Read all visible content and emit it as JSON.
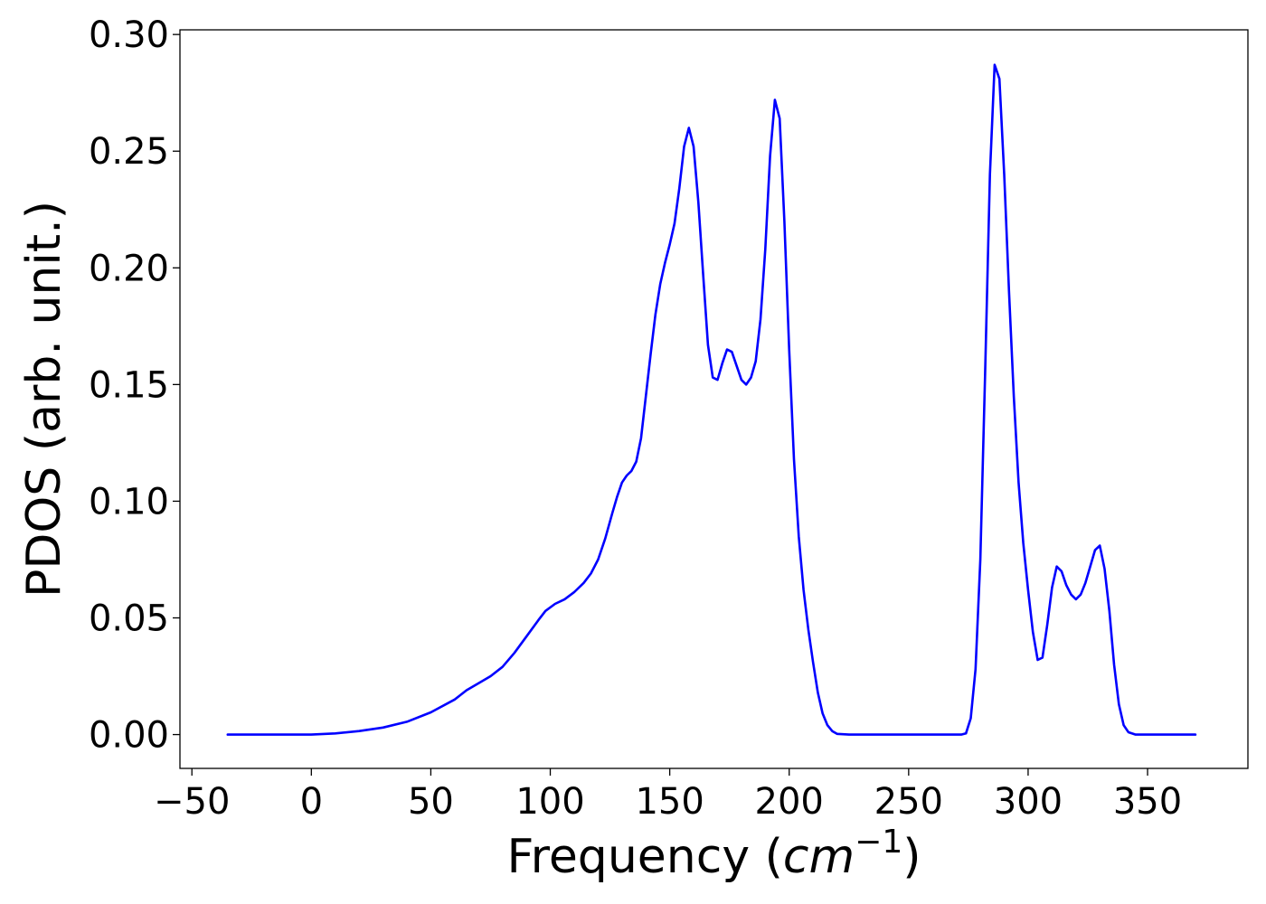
{
  "chart_data": {
    "type": "line",
    "xlabel": "Frequency (cm−1)",
    "xlabel_parts": {
      "prefix": "Frequency (",
      "unit_base": "cm",
      "unit_exponent": "−1",
      "suffix": ")"
    },
    "ylabel": "PDOS (arb. unit.)",
    "xlim": [
      -55,
      392
    ],
    "ylim": [
      -0.0145,
      0.302
    ],
    "xticks": [
      -50,
      0,
      50,
      100,
      150,
      200,
      250,
      300,
      350
    ],
    "xtick_labels": [
      "−50",
      "0",
      "50",
      "100",
      "150",
      "200",
      "250",
      "300",
      "350"
    ],
    "yticks": [
      0.0,
      0.05,
      0.1,
      0.15,
      0.2,
      0.25,
      0.3
    ],
    "ytick_labels": [
      "0.00",
      "0.05",
      "0.10",
      "0.15",
      "0.20",
      "0.25",
      "0.30"
    ],
    "grid": false,
    "legend": "none",
    "series": [
      {
        "color": "#0000ff",
        "points": [
          [
            -35,
            0.0
          ],
          [
            0,
            0.0
          ],
          [
            10,
            0.0005
          ],
          [
            20,
            0.0015
          ],
          [
            30,
            0.003
          ],
          [
            40,
            0.0055
          ],
          [
            50,
            0.0095
          ],
          [
            60,
            0.015
          ],
          [
            65,
            0.019
          ],
          [
            70,
            0.022
          ],
          [
            75,
            0.025
          ],
          [
            80,
            0.029
          ],
          [
            85,
            0.035
          ],
          [
            90,
            0.042
          ],
          [
            95,
            0.049
          ],
          [
            98,
            0.053
          ],
          [
            102,
            0.056
          ],
          [
            106,
            0.058
          ],
          [
            110,
            0.061
          ],
          [
            114,
            0.065
          ],
          [
            117,
            0.069
          ],
          [
            120,
            0.075
          ],
          [
            123,
            0.084
          ],
          [
            126,
            0.095
          ],
          [
            128,
            0.102
          ],
          [
            130,
            0.108
          ],
          [
            132,
            0.111
          ],
          [
            134,
            0.113
          ],
          [
            136,
            0.117
          ],
          [
            138,
            0.127
          ],
          [
            140,
            0.145
          ],
          [
            142,
            0.163
          ],
          [
            144,
            0.18
          ],
          [
            146,
            0.193
          ],
          [
            148,
            0.202
          ],
          [
            150,
            0.21
          ],
          [
            152,
            0.219
          ],
          [
            154,
            0.234
          ],
          [
            156,
            0.252
          ],
          [
            158,
            0.26
          ],
          [
            160,
            0.252
          ],
          [
            162,
            0.228
          ],
          [
            164,
            0.197
          ],
          [
            166,
            0.167
          ],
          [
            168,
            0.153
          ],
          [
            170,
            0.152
          ],
          [
            172,
            0.159
          ],
          [
            174,
            0.165
          ],
          [
            176,
            0.164
          ],
          [
            178,
            0.158
          ],
          [
            180,
            0.152
          ],
          [
            182,
            0.15
          ],
          [
            184,
            0.153
          ],
          [
            186,
            0.16
          ],
          [
            188,
            0.178
          ],
          [
            190,
            0.208
          ],
          [
            192,
            0.248
          ],
          [
            194,
            0.272
          ],
          [
            196,
            0.264
          ],
          [
            198,
            0.22
          ],
          [
            200,
            0.165
          ],
          [
            202,
            0.118
          ],
          [
            204,
            0.085
          ],
          [
            206,
            0.062
          ],
          [
            208,
            0.045
          ],
          [
            210,
            0.031
          ],
          [
            212,
            0.018
          ],
          [
            214,
            0.009
          ],
          [
            216,
            0.004
          ],
          [
            218,
            0.0015
          ],
          [
            220,
            0.0003
          ],
          [
            225,
            0.0
          ],
          [
            272,
            0.0
          ],
          [
            274,
            0.0005
          ],
          [
            276,
            0.007
          ],
          [
            278,
            0.028
          ],
          [
            280,
            0.075
          ],
          [
            282,
            0.155
          ],
          [
            284,
            0.24
          ],
          [
            286,
            0.287
          ],
          [
            288,
            0.281
          ],
          [
            290,
            0.24
          ],
          [
            292,
            0.19
          ],
          [
            294,
            0.145
          ],
          [
            296,
            0.108
          ],
          [
            298,
            0.082
          ],
          [
            300,
            0.062
          ],
          [
            302,
            0.044
          ],
          [
            304,
            0.032
          ],
          [
            306,
            0.033
          ],
          [
            308,
            0.047
          ],
          [
            310,
            0.063
          ],
          [
            312,
            0.072
          ],
          [
            314,
            0.07
          ],
          [
            316,
            0.064
          ],
          [
            318,
            0.06
          ],
          [
            320,
            0.058
          ],
          [
            322,
            0.06
          ],
          [
            324,
            0.065
          ],
          [
            326,
            0.072
          ],
          [
            328,
            0.079
          ],
          [
            330,
            0.081
          ],
          [
            332,
            0.071
          ],
          [
            334,
            0.053
          ],
          [
            336,
            0.03
          ],
          [
            338,
            0.013
          ],
          [
            340,
            0.004
          ],
          [
            342,
            0.001
          ],
          [
            345,
            0.0
          ],
          [
            370,
            0.0
          ]
        ]
      }
    ]
  }
}
